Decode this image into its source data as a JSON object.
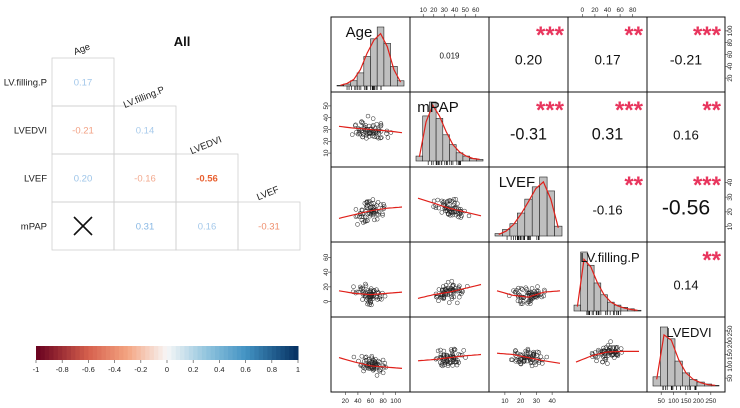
{
  "chart_data": [
    {
      "type": "heatmap",
      "title": "All",
      "variables": [
        "Age",
        "LV.filling.P",
        "LVEDVI",
        "LVEF",
        "mPAP"
      ],
      "rows": [
        "LV.filling.P",
        "LVEDVI",
        "LVEF",
        "mPAP"
      ],
      "columns": [
        "Age",
        "LV.filling.P",
        "LVEDVI",
        "LVEF"
      ],
      "cells": [
        {
          "row": "LV.filling.P",
          "col": "Age",
          "value": 0.17,
          "label": "0.17"
        },
        {
          "row": "LVEDVI",
          "col": "Age",
          "value": -0.21,
          "label": "-0.21"
        },
        {
          "row": "LVEDVI",
          "col": "LV.filling.P",
          "value": 0.14,
          "label": "0.14"
        },
        {
          "row": "LVEF",
          "col": "Age",
          "value": 0.2,
          "label": "0.20"
        },
        {
          "row": "LVEF",
          "col": "LV.filling.P",
          "value": -0.16,
          "label": "-0.16"
        },
        {
          "row": "LVEF",
          "col": "LVEDVI",
          "value": -0.56,
          "label": "-0.56"
        },
        {
          "row": "mPAP",
          "col": "Age",
          "value": null,
          "label": "×",
          "note": "crossed out"
        },
        {
          "row": "mPAP",
          "col": "LV.filling.P",
          "value": 0.31,
          "label": "0.31"
        },
        {
          "row": "mPAP",
          "col": "LVEDVI",
          "value": 0.16,
          "label": "0.16"
        },
        {
          "row": "mPAP",
          "col": "LVEF",
          "value": -0.31,
          "label": "-0.31"
        }
      ],
      "colorbar": {
        "range": [
          -1,
          1
        ],
        "ticks": [
          "-1",
          "-0.8",
          "-0.6",
          "-0.4",
          "-0.2",
          "0",
          "0.2",
          "0.4",
          "0.6",
          "0.8",
          "1"
        ],
        "low_color": "#67001f",
        "mid_color": "#f7f7f7",
        "high_color": "#053061"
      }
    },
    {
      "type": "scatter",
      "subtype": "scatterplot-matrix",
      "variables": [
        "Age",
        "mPAP",
        "LVEF",
        "LV.filling.P",
        "LVEDVI"
      ],
      "diagonal": "histogram with density curve",
      "axis_ticks": {
        "top": {
          "mPAP": [
            "10",
            "20",
            "30",
            "40",
            "50",
            "60"
          ],
          "LV.filling.P": [
            "0",
            "20",
            "40",
            "60",
            "80"
          ]
        },
        "bottom": {
          "Age": [
            "20",
            "40",
            "60",
            "80",
            "100"
          ],
          "LVEF": [
            "10",
            "20",
            "30",
            "40"
          ],
          "LVEDVI": [
            "50",
            "100",
            "150",
            "200",
            "250"
          ]
        },
        "left": {
          "mPAP": [
            "10",
            "20",
            "30",
            "40",
            "50"
          ],
          "LV.filling.P": [
            "0",
            "20",
            "40",
            "60"
          ]
        },
        "right": {
          "Age": [
            "20",
            "40",
            "60",
            "80",
            "100"
          ],
          "LVEF": [
            "10",
            "20",
            "30",
            "40"
          ],
          "LVEDVI": [
            "50",
            "100",
            "150",
            "200",
            "250"
          ]
        }
      },
      "upper_cells": [
        {
          "row": 1,
          "col": 2,
          "value": "0.019",
          "stars": ""
        },
        {
          "row": 1,
          "col": 3,
          "value": "0.20",
          "stars": "***"
        },
        {
          "row": 1,
          "col": 4,
          "value": "0.17",
          "stars": "**"
        },
        {
          "row": 1,
          "col": 5,
          "value": "-0.21",
          "stars": "***"
        },
        {
          "row": 2,
          "col": 3,
          "value": "-0.31",
          "stars": "***"
        },
        {
          "row": 2,
          "col": 4,
          "value": "0.31",
          "stars": "***"
        },
        {
          "row": 2,
          "col": 5,
          "value": "0.16",
          "stars": "**"
        },
        {
          "row": 3,
          "col": 4,
          "value": "-0.16",
          "stars": "**"
        },
        {
          "row": 3,
          "col": 5,
          "value": "-0.56",
          "stars": "***"
        },
        {
          "row": 4,
          "col": 5,
          "value": "0.14",
          "stars": "**"
        }
      ],
      "histograms": {
        "Age": [
          1,
          3,
          8,
          20,
          45,
          72,
          90,
          65,
          30,
          8
        ],
        "mPAP": [
          6,
          55,
          72,
          52,
          32,
          20,
          10,
          6,
          3,
          2
        ],
        "LVEF": [
          3,
          8,
          15,
          28,
          45,
          60,
          72,
          55,
          12
        ],
        "LV.filling.P": [
          8,
          80,
          62,
          38,
          22,
          12,
          8,
          5,
          3,
          1
        ],
        "LVEDVI": [
          14,
          90,
          72,
          38,
          20,
          10,
          6,
          3,
          1
        ]
      },
      "density": {
        "Age": [
          1,
          4,
          10,
          25,
          50,
          70,
          80,
          60,
          25,
          6
        ],
        "mPAP": [
          5,
          48,
          68,
          55,
          36,
          20,
          11,
          6,
          3,
          2
        ],
        "LVEF": [
          2,
          6,
          14,
          27,
          42,
          58,
          66,
          45,
          10
        ],
        "LV.filling.P": [
          6,
          70,
          60,
          38,
          22,
          12,
          7,
          4,
          2,
          1
        ],
        "LVEDVI": [
          10,
          78,
          70,
          40,
          20,
          10,
          5,
          2,
          1
        ]
      },
      "smooth_trends": {
        "2-1": [
          0.45,
          0.48,
          0.5,
          0.52,
          0.55
        ],
        "3-1": [
          0.72,
          0.66,
          0.6,
          0.56,
          0.54
        ],
        "3-2": [
          0.4,
          0.48,
          0.56,
          0.62,
          0.68
        ],
        "4-1": [
          0.68,
          0.72,
          0.74,
          0.72,
          0.7
        ],
        "4-2": [
          0.8,
          0.74,
          0.7,
          0.64,
          0.58
        ],
        "4-3": [
          0.68,
          0.75,
          0.78,
          0.7,
          0.68
        ],
        "5-1": [
          0.55,
          0.62,
          0.68,
          0.7,
          0.72
        ],
        "5-2": [
          0.6,
          0.58,
          0.55,
          0.52,
          0.5
        ],
        "5-3": [
          0.48,
          0.5,
          0.55,
          0.6,
          0.64
        ],
        "5-4": [
          0.62,
          0.52,
          0.46,
          0.45,
          0.45
        ]
      },
      "colors": {
        "stars": "#e8355d",
        "density": "#e0201a",
        "hist_fill": "#bfbfbf"
      }
    }
  ]
}
